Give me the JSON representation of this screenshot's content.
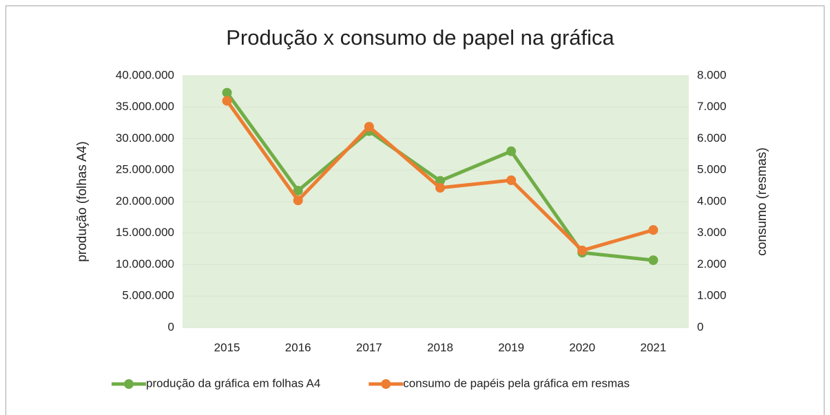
{
  "chart_data": {
    "type": "line",
    "title": "Produção x consumo de papel na gráfica",
    "ylabel": "produção (folhas A4)",
    "y2label": "consumo (resmas)",
    "categories": [
      "2015",
      "2016",
      "2017",
      "2018",
      "2019",
      "2020",
      "2021"
    ],
    "series": [
      {
        "name": "produção da gráfica em folhas A4",
        "color": "#70ad47",
        "axis": "y",
        "values": [
          37300000,
          21750000,
          31200000,
          23300000,
          28000000,
          11900000,
          10700000
        ]
      },
      {
        "name": "consumo de papéis pela gráfica em resmas",
        "color": "#ed7d31",
        "axis": "y2",
        "values": [
          7200,
          4040,
          6380,
          4440,
          4680,
          2450,
          3100
        ]
      }
    ],
    "ylim": [
      0,
      40000000
    ],
    "yticks": [
      0,
      {
        "value": 5000000,
        "label": "5.000.000"
      },
      {
        "value": 10000000,
        "label": "10.000.000"
      },
      {
        "value": 15000000,
        "label": "15.000.000"
      },
      {
        "value": 20000000,
        "label": "20.000.000"
      },
      {
        "value": 25000000,
        "label": "25.000.000"
      },
      {
        "value": 30000000,
        "label": "30.000.000"
      },
      {
        "value": 35000000,
        "label": "35.000.000"
      },
      {
        "value": 40000000,
        "label": "40.000.000"
      }
    ],
    "y2lim": [
      0,
      8000
    ],
    "y2ticks": [
      0,
      {
        "value": 1000,
        "label": "1.000"
      },
      {
        "value": 2000,
        "label": "2.000"
      },
      {
        "value": 3000,
        "label": "3.000"
      },
      {
        "value": 4000,
        "label": "4.000"
      },
      {
        "value": 5000,
        "label": "5.000"
      },
      {
        "value": 6000,
        "label": "6.000"
      },
      {
        "value": 7000,
        "label": "7.000"
      },
      {
        "value": 8000,
        "label": "8.000"
      }
    ],
    "grid": true,
    "legend": "bottom",
    "plot_background": "#e2efda"
  }
}
